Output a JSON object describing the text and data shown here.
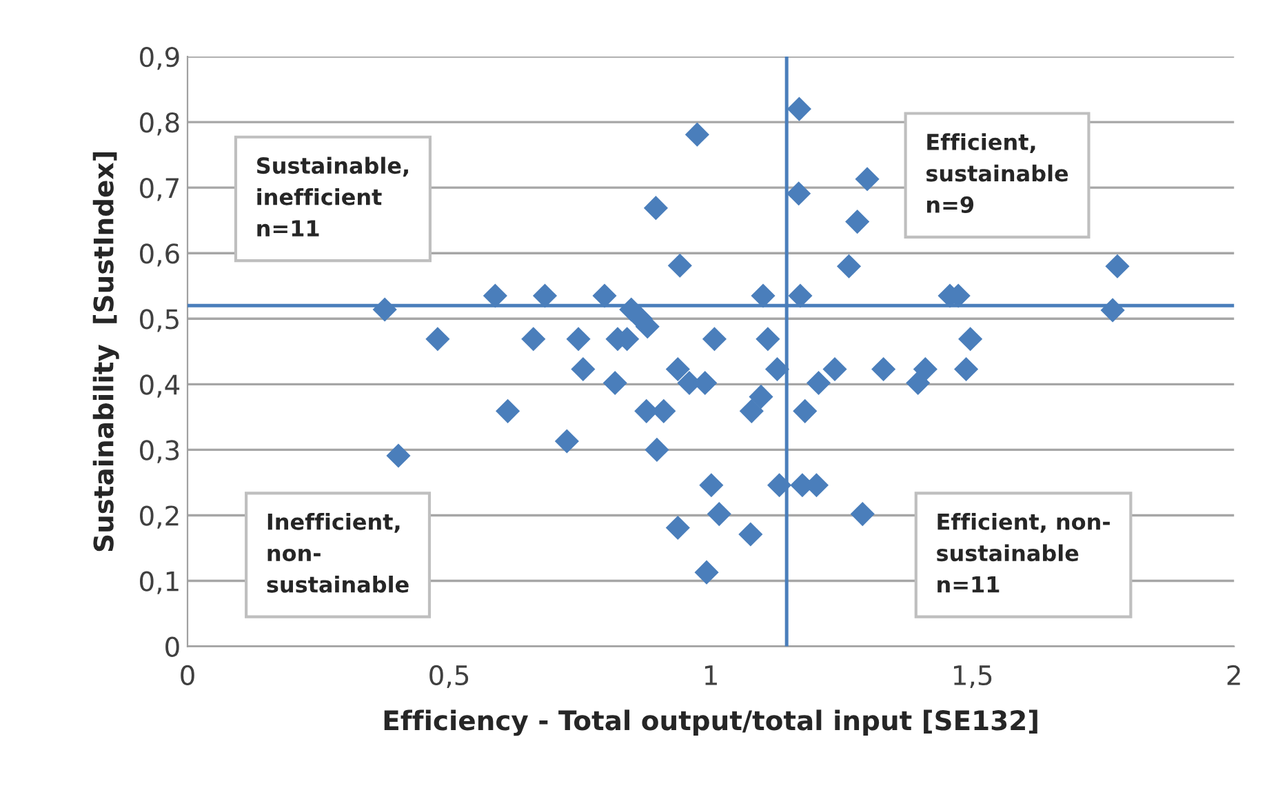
{
  "chart_data": {
    "type": "scatter",
    "xlabel": "Efficiency - Total output/total input [SE132]",
    "ylabel": "Sustainability  [SustIndex]",
    "x": [
      0.377,
      0.403,
      0.478,
      0.588,
      0.612,
      0.683,
      0.661,
      0.725,
      0.747,
      0.756,
      0.797,
      0.817,
      0.822,
      0.84,
      0.848,
      0.866,
      0.879,
      0.877,
      0.895,
      0.897,
      0.91,
      0.937,
      0.941,
      0.937,
      0.959,
      0.974,
      0.989,
      0.992,
      1.007,
      1.001,
      1.016,
      1.076,
      1.078,
      1.096,
      1.1,
      1.109,
      1.127,
      1.131,
      1.169,
      1.168,
      1.171,
      1.175,
      1.18,
      1.202,
      1.206,
      1.237,
      1.264,
      1.28,
      1.29,
      1.299,
      1.33,
      1.396,
      1.41,
      1.457,
      1.473,
      1.488,
      1.496,
      1.768,
      1.777
    ],
    "values": [
      0.514,
      0.291,
      0.469,
      0.535,
      0.359,
      0.535,
      0.469,
      0.313,
      0.469,
      0.423,
      0.535,
      0.402,
      0.469,
      0.469,
      0.514,
      0.5,
      0.488,
      0.359,
      0.669,
      0.3,
      0.359,
      0.423,
      0.581,
      0.181,
      0.402,
      0.781,
      0.402,
      0.113,
      0.469,
      0.246,
      0.202,
      0.171,
      0.359,
      0.381,
      0.535,
      0.469,
      0.423,
      0.246,
      0.82,
      0.691,
      0.535,
      0.246,
      0.359,
      0.246,
      0.402,
      0.423,
      0.58,
      0.648,
      0.202,
      0.713,
      0.423,
      0.402,
      0.423,
      0.535,
      0.535,
      0.423,
      0.469,
      0.513,
      0.58
    ],
    "color": "#4a7ebb",
    "marker": "diamond",
    "xlim": [
      0,
      2
    ],
    "xticks": [
      0,
      {
        "value": 0.5,
        "label": "0,5"
      },
      1,
      {
        "value": 1.5,
        "label": "1,5"
      },
      2
    ],
    "ylim": [
      0,
      0.9
    ],
    "yticks": [
      0,
      {
        "value": 0.1,
        "label": "0,1"
      },
      {
        "value": 0.2,
        "label": "0,2"
      },
      {
        "value": 0.3,
        "label": "0,3"
      },
      {
        "value": 0.4,
        "label": "0,4"
      },
      {
        "value": 0.5,
        "label": "0,5"
      },
      {
        "value": 0.6,
        "label": "0,6"
      },
      {
        "value": 0.7,
        "label": "0,7"
      },
      {
        "value": 0.8,
        "label": "0,8"
      },
      {
        "value": 0.9,
        "label": "0,9"
      }
    ],
    "ref_lines": [
      {
        "axis": "y",
        "value": 0.52,
        "color": "#4a7ebb"
      },
      {
        "axis": "x",
        "value": 1.145,
        "color": "#4a7ebb"
      }
    ],
    "annotations": [
      "Sustainable,\ninefficient\nn=11",
      "Efficient,\nsustainable\nn=9",
      "Inefficient,\nnon-\nsustainable",
      "Efficient, non-\nsustainable\nn=11"
    ],
    "grid": "y",
    "legend": false
  }
}
